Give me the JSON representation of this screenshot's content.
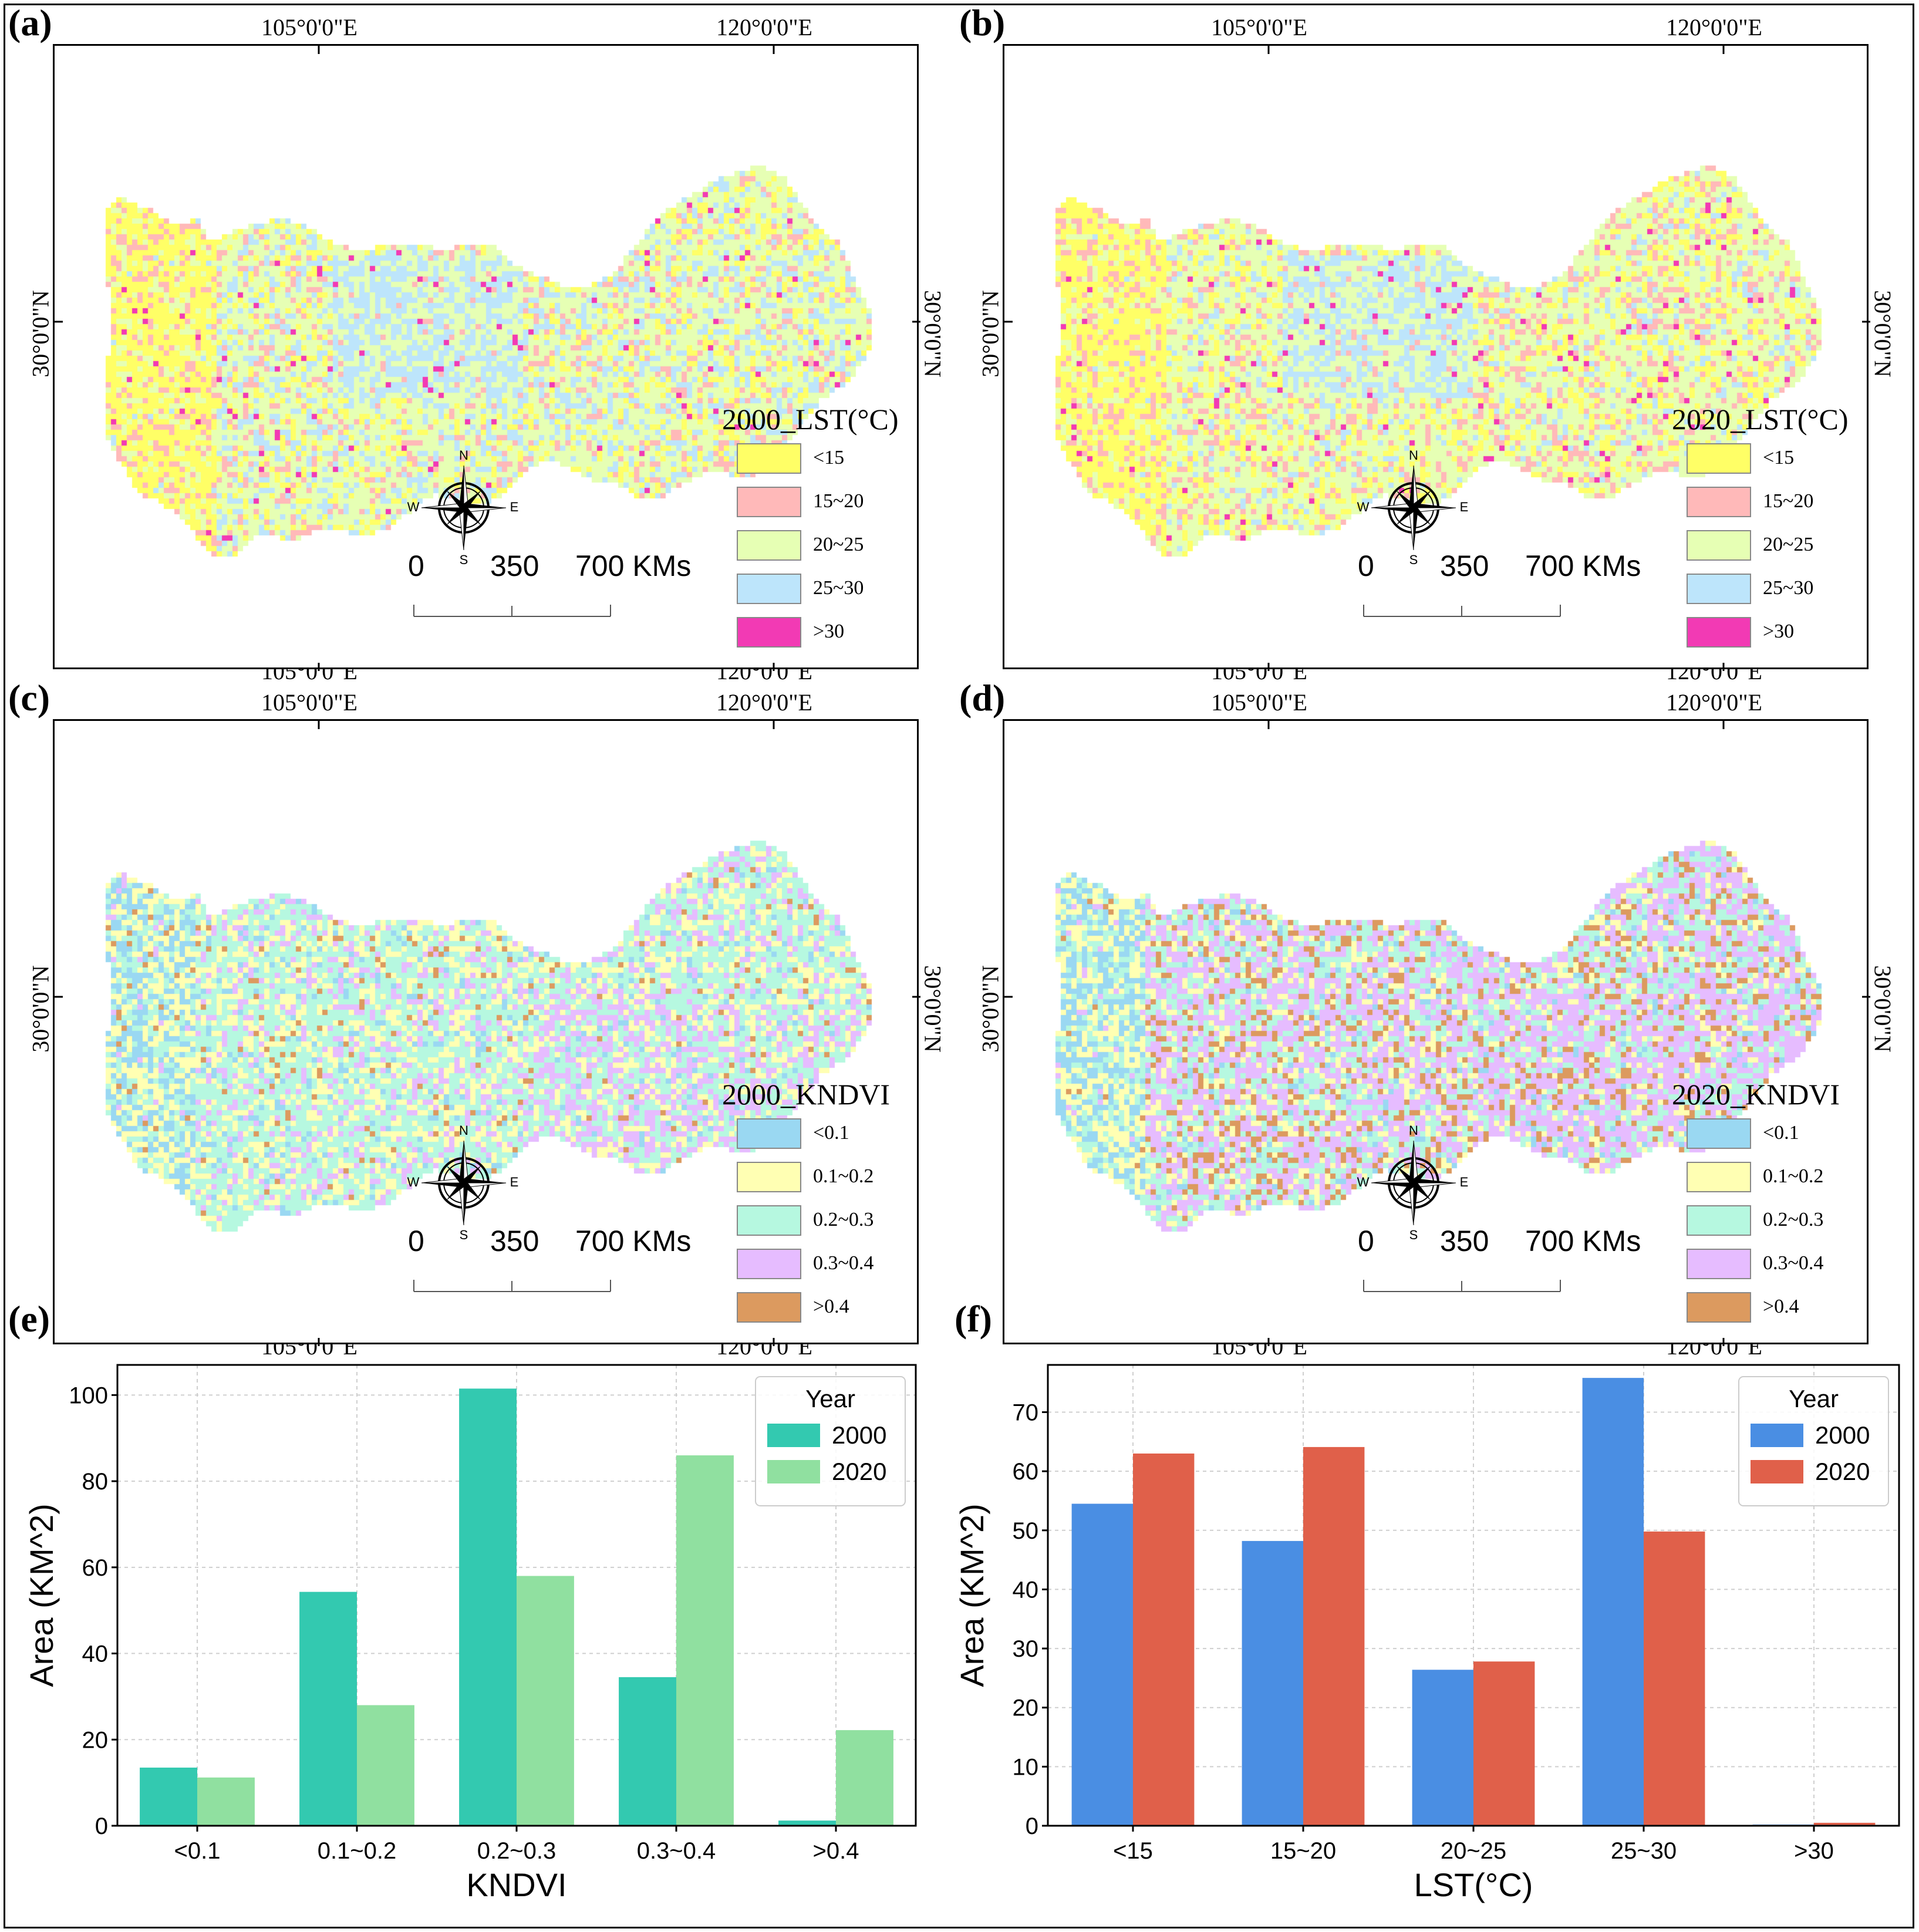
{
  "panels": {
    "a": {
      "letter": "(a)",
      "lon_labels": [
        "105°0'0\"E",
        "120°0'0\"E"
      ],
      "lat_label": "30°0'0\"N",
      "legend_title": "2000_LST(°C)",
      "legend": [
        {
          "label": "<15",
          "color": "#ffff66"
        },
        {
          "label": "15~20",
          "color": "#ffb9b9"
        },
        {
          "label": "20~25",
          "color": "#e6ffb4"
        },
        {
          "label": "25~30",
          "color": "#bde5fb"
        },
        {
          "label": ">30",
          "color": "#f23ab4"
        }
      ],
      "palette_weights": [
        0.16,
        0.12,
        0.47,
        0.23,
        0.02
      ]
    },
    "b": {
      "letter": "(b)",
      "lon_labels": [
        "105°0'0\"E",
        "120°0'0\"E"
      ],
      "lat_label": "30°0'0\"N",
      "legend_title": "2020_LST(°C)",
      "legend": [
        {
          "label": "<15",
          "color": "#ffff66"
        },
        {
          "label": "15~20",
          "color": "#ffb9b9"
        },
        {
          "label": "20~25",
          "color": "#e6ffb4"
        },
        {
          "label": "25~30",
          "color": "#bde5fb"
        },
        {
          "label": ">30",
          "color": "#f23ab4"
        }
      ],
      "palette_weights": [
        0.18,
        0.17,
        0.52,
        0.11,
        0.02
      ]
    },
    "c": {
      "letter": "(c)",
      "lon_labels": [
        "105°0'0\"E",
        "120°0'0\"E"
      ],
      "lat_label": "30°0'0\"N",
      "legend_title": "2000_KNDVI",
      "legend": [
        {
          "label": "<0.1",
          "color": "#9ad8f2"
        },
        {
          "label": "0.1~0.2",
          "color": "#ffffb3"
        },
        {
          "label": "0.2~0.3",
          "color": "#b6f8e0"
        },
        {
          "label": "0.3~0.4",
          "color": "#e6bcff"
        },
        {
          "label": ">0.4",
          "color": "#dc9a5f"
        }
      ],
      "palette_weights": [
        0.06,
        0.26,
        0.48,
        0.17,
        0.03
      ]
    },
    "d": {
      "letter": "(d)",
      "lon_labels": [
        "105°0'0\"E",
        "120°0'0\"E"
      ],
      "lat_label": "30°0'0\"N",
      "legend_title": "2020_KNDVI",
      "legend": [
        {
          "label": "<0.1",
          "color": "#9ad8f2"
        },
        {
          "label": "0.1~0.2",
          "color": "#ffffb3"
        },
        {
          "label": "0.2~0.3",
          "color": "#b6f8e0"
        },
        {
          "label": "0.3~0.4",
          "color": "#e6bcff"
        },
        {
          "label": ">0.4",
          "color": "#dc9a5f"
        }
      ],
      "palette_weights": [
        0.05,
        0.13,
        0.28,
        0.4,
        0.14
      ]
    }
  },
  "compass": {
    "n": "N",
    "s": "S",
    "e": "E",
    "w": "W"
  },
  "scale_bar": {
    "zero": "0",
    "mid": "350",
    "end": "700 KMs"
  },
  "chart_data": [
    {
      "panel_letter": "(e)",
      "type": "bar",
      "categories": [
        "<0.1",
        "0.1~0.2",
        "0.2~0.3",
        "0.3~0.4",
        ">0.4"
      ],
      "series": [
        {
          "name": "2000",
          "color": "#33c9b0",
          "values": [
            13.5,
            54.3,
            101.5,
            34.5,
            1.2
          ]
        },
        {
          "name": "2020",
          "color": "#90e0a0",
          "values": [
            11.2,
            28.0,
            58.0,
            86.0,
            22.2
          ]
        }
      ],
      "xlabel": "KNDVI",
      "ylabel": "Area (KM^2)",
      "ylim": [
        0,
        107
      ],
      "yticks": [
        0,
        20,
        40,
        60,
        80,
        100
      ],
      "legend_title": "Year",
      "legend_position": "top-right",
      "grid": true
    },
    {
      "panel_letter": "(f)",
      "type": "bar",
      "categories": [
        "<15",
        "15~20",
        "20~25",
        "25~30",
        ">30"
      ],
      "series": [
        {
          "name": "2000",
          "color": "#4a8ee3",
          "values": [
            54.5,
            48.2,
            26.4,
            75.8,
            0.2
          ]
        },
        {
          "name": "2020",
          "color": "#e0604a",
          "values": [
            63.0,
            64.1,
            27.8,
            49.8,
            0.5
          ]
        }
      ],
      "xlabel": "LST(°C)",
      "ylabel": "Area (KM^2)",
      "ylim": [
        0,
        78
      ],
      "yticks": [
        0,
        10,
        20,
        30,
        40,
        50,
        60,
        70
      ],
      "legend_title": "Year",
      "legend_position": "top-right",
      "grid": true
    }
  ]
}
